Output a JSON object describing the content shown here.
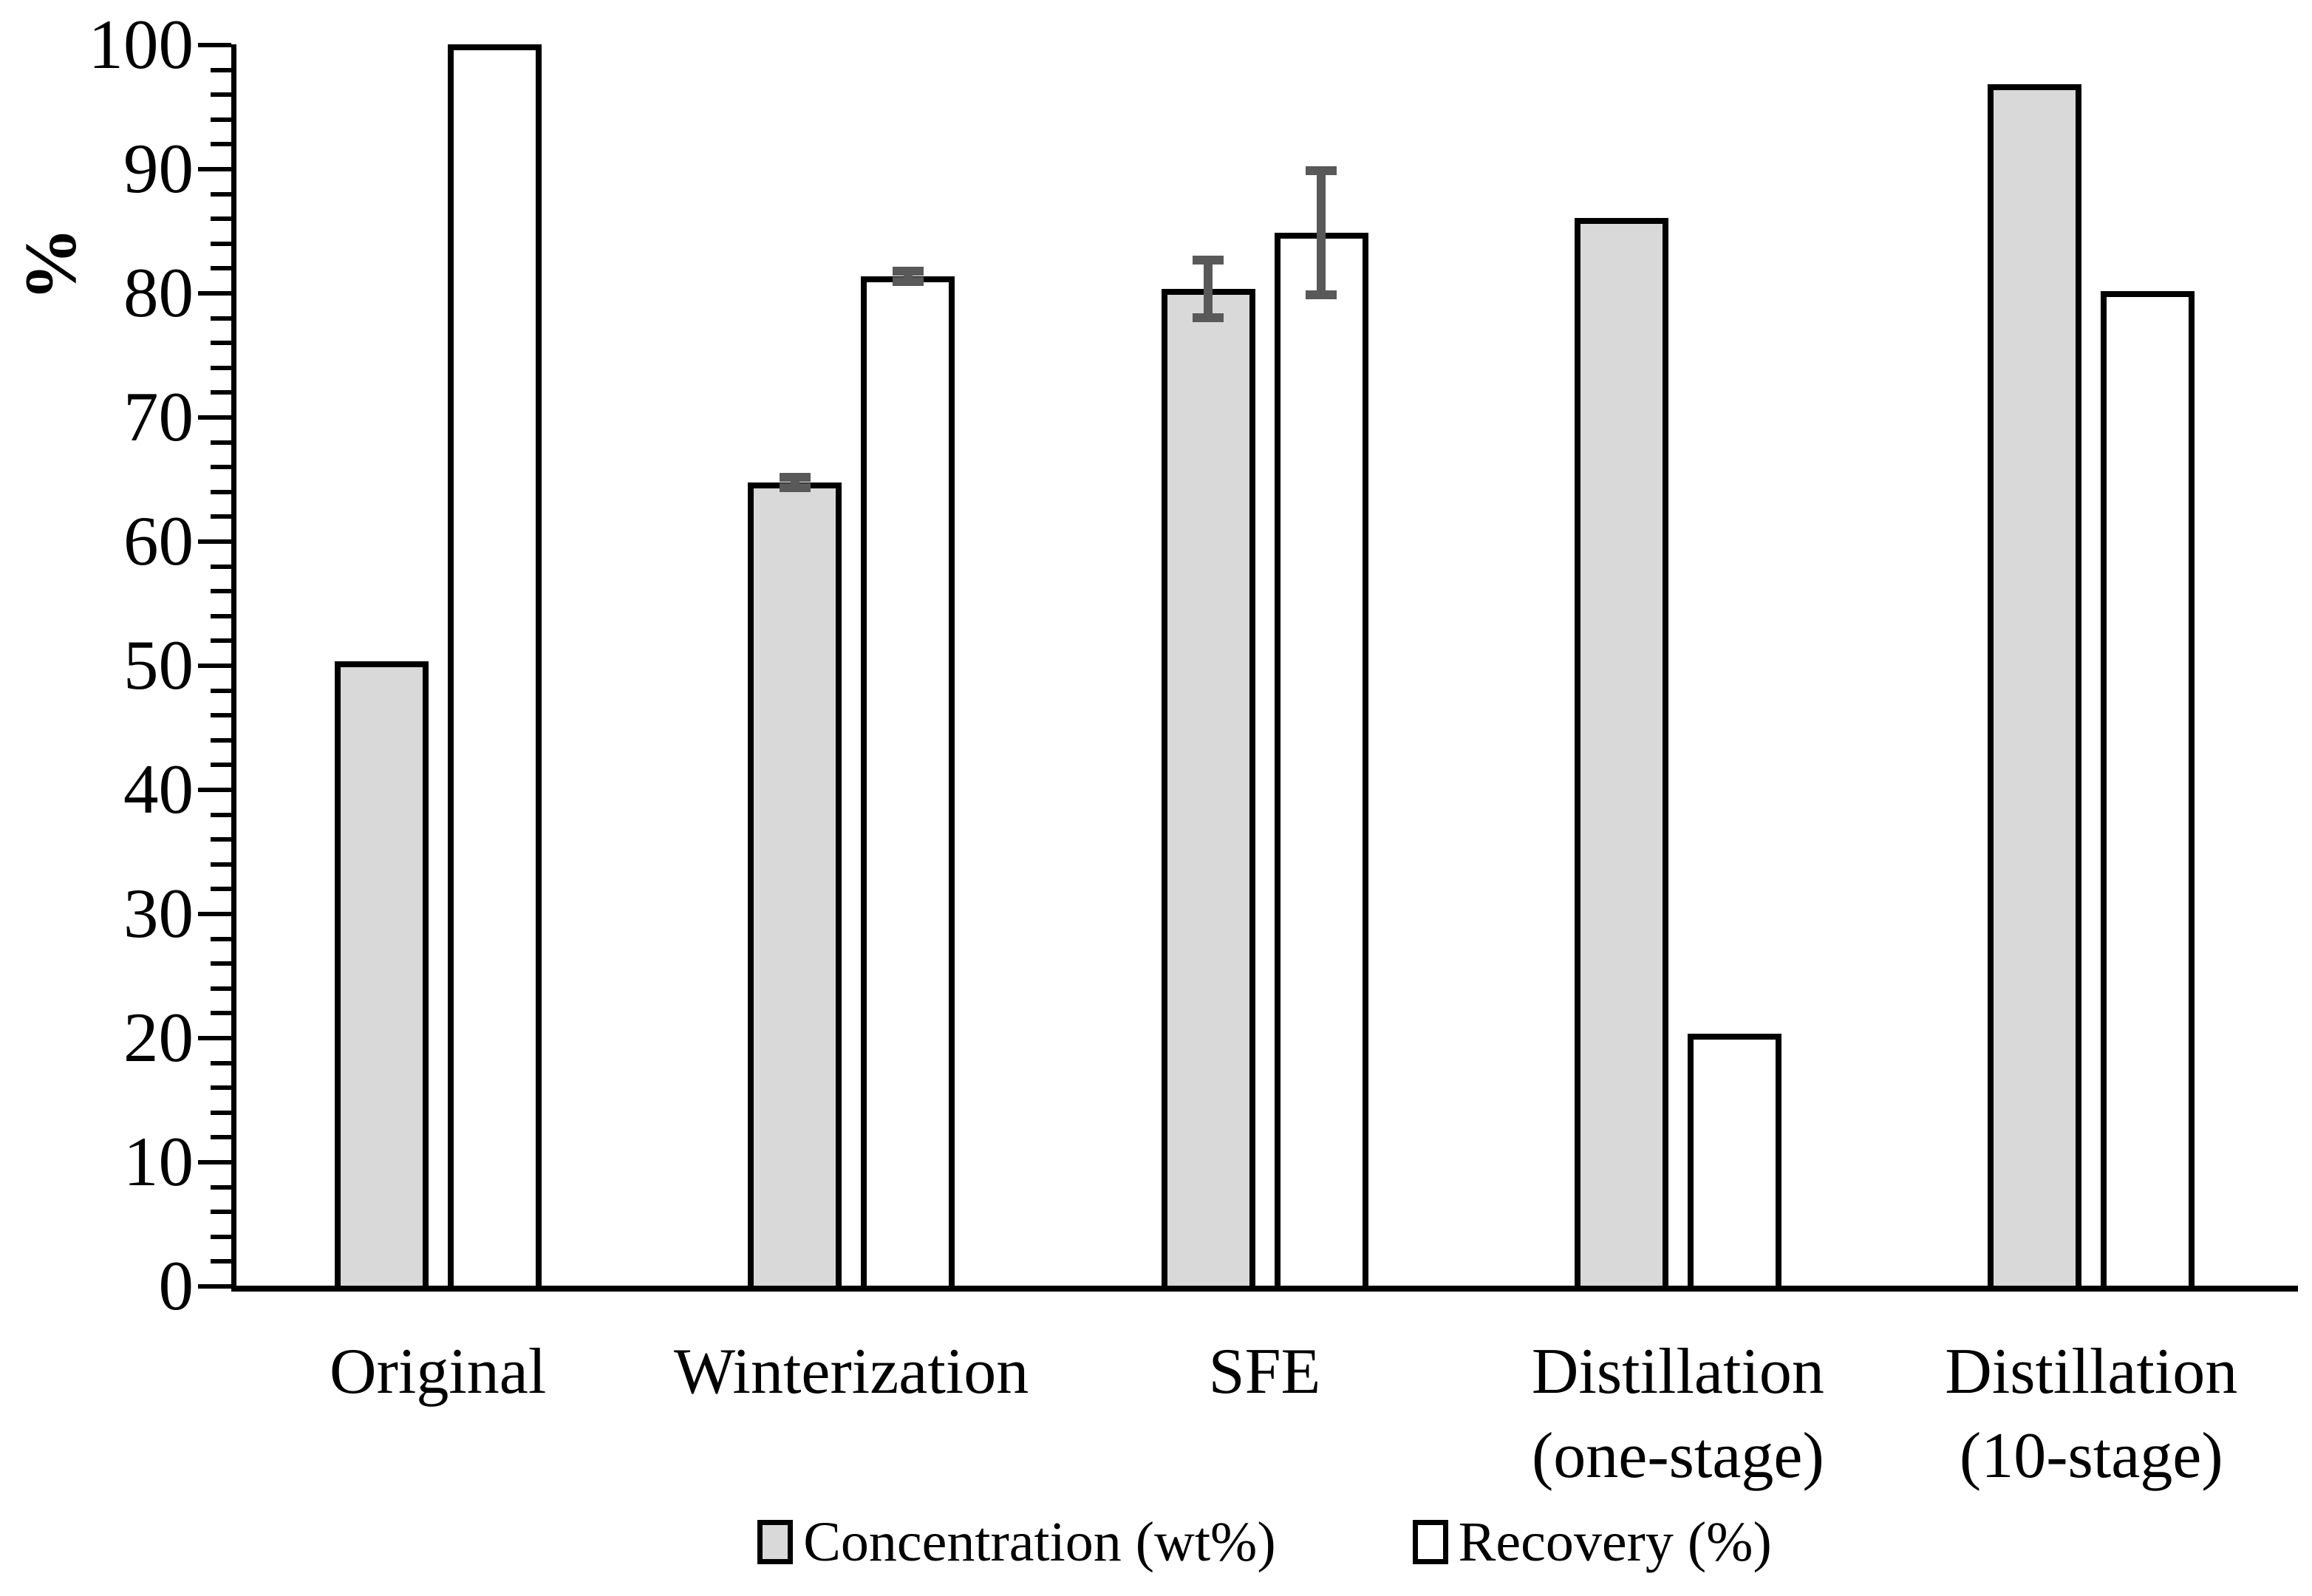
{
  "chart_data": {
    "type": "bar",
    "title": "",
    "ylabel": "%",
    "xlabel": "",
    "ylim": [
      0,
      100
    ],
    "major_tick_step": 10,
    "minor_tick_step": 2,
    "grid": false,
    "legend_position": "bottom",
    "ytick_labels": [
      "0",
      "10",
      "20",
      "30",
      "40",
      "50",
      "60",
      "70",
      "80",
      "90",
      "100"
    ],
    "categories": [
      [
        "Original"
      ],
      [
        "Winterization"
      ],
      [
        "SFE"
      ],
      [
        "Distillation",
        "(one-stage)"
      ],
      [
        "Distillation",
        "(10-stage)"
      ]
    ],
    "series": [
      {
        "name": "Concentration (wt%)",
        "fill": "#d9d9d9",
        "values": [
          50.3,
          64.7,
          80.3,
          86.0,
          96.8
        ],
        "errors": [
          null,
          0.4,
          2.3,
          null,
          null
        ]
      },
      {
        "name": "Recovery (%)",
        "fill": "#ffffff",
        "values": [
          100,
          81.3,
          84.8,
          20.3,
          80.1
        ],
        "errors": [
          null,
          0.4,
          5.0,
          null,
          null
        ]
      }
    ],
    "bar_border_color": "#000000",
    "axis_color": "#000000",
    "error_bar_color": "#595959"
  }
}
